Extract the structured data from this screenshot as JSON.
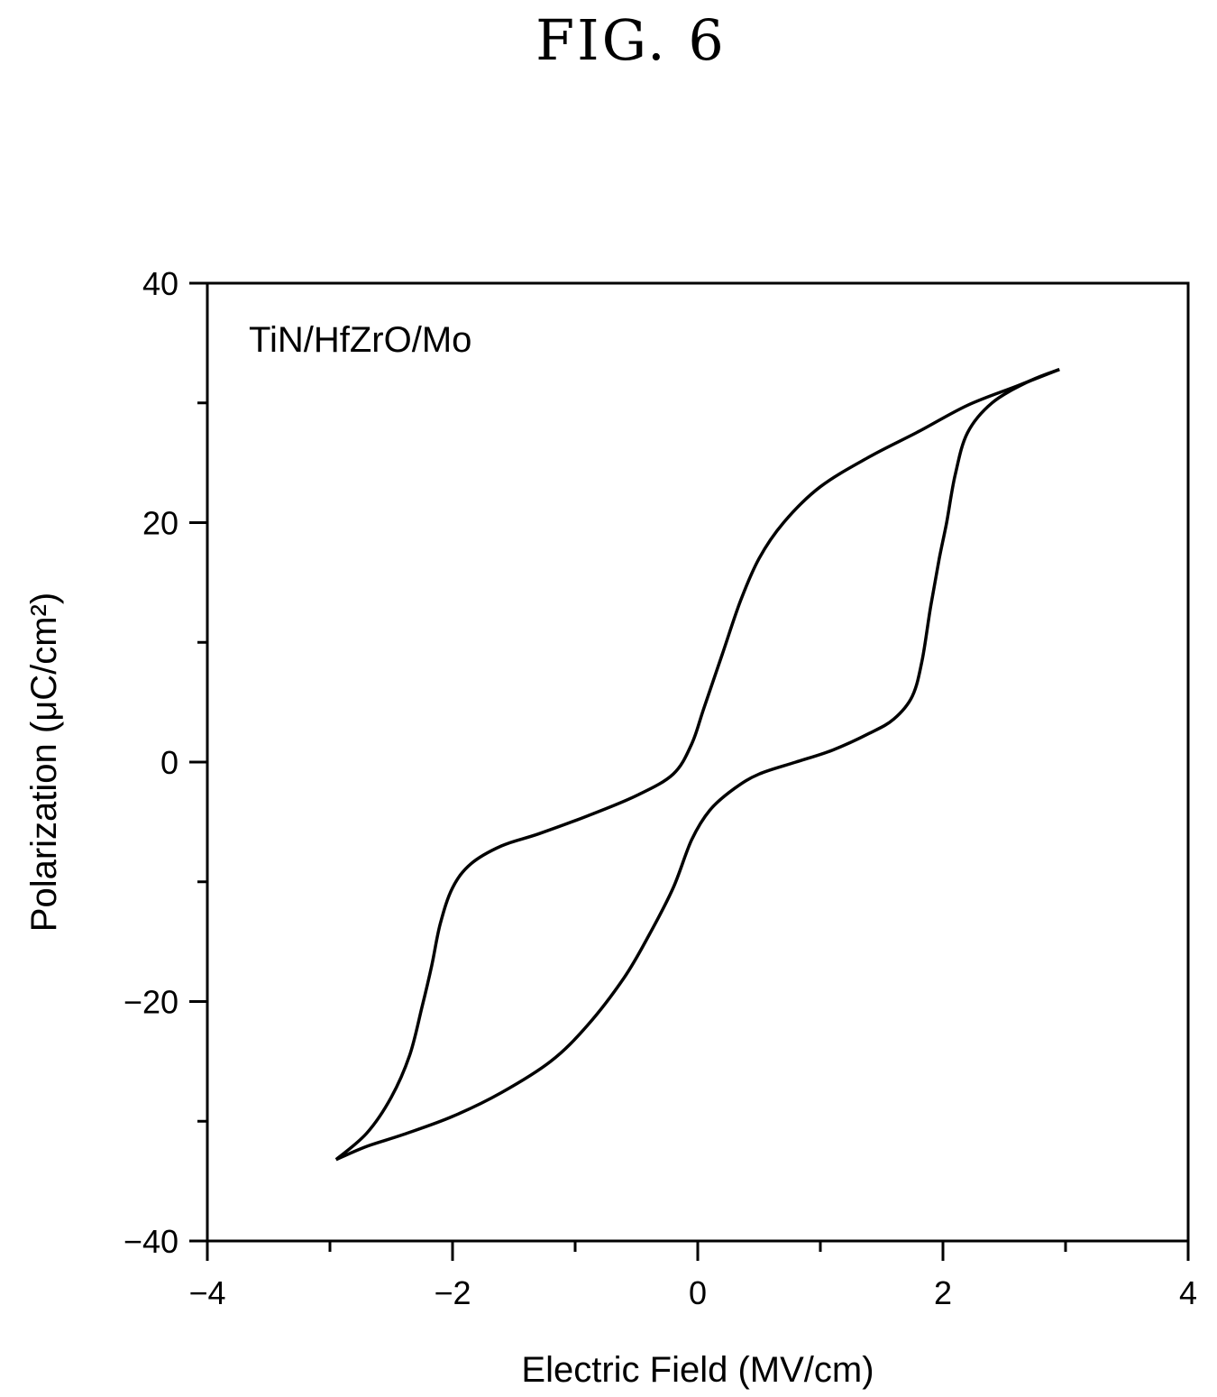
{
  "figure_label": "FIG. 6",
  "chart_data": {
    "type": "line",
    "title": "",
    "xlabel": "Electric Field (MV/cm)",
    "ylabel": "Polarization (μC/cm²)",
    "xlim": [
      -4,
      4
    ],
    "ylim": [
      -40,
      40
    ],
    "x_ticks": [
      -4,
      -2,
      0,
      2,
      4
    ],
    "x_tick_labels": [
      "−4",
      "−2",
      "0",
      "2",
      "4"
    ],
    "y_ticks": [
      -40,
      -20,
      0,
      20,
      40
    ],
    "y_tick_labels": [
      "−40",
      "−20",
      "0",
      "20",
      "40"
    ],
    "grid": false,
    "annotation": "TiN/HfZrO/Mo",
    "series": [
      {
        "points": [
          [
            -2.95,
            -33.2
          ],
          [
            -2.7,
            -32.1
          ],
          [
            -2.4,
            -31.1
          ],
          [
            -2.0,
            -29.6
          ],
          [
            -1.6,
            -27.6
          ],
          [
            -1.2,
            -25.0
          ],
          [
            -0.9,
            -22.0
          ],
          [
            -0.6,
            -18.0
          ],
          [
            -0.4,
            -14.5
          ],
          [
            -0.2,
            -10.5
          ],
          [
            -0.05,
            -6.5
          ],
          [
            0.1,
            -4.0
          ],
          [
            0.3,
            -2.2
          ],
          [
            0.5,
            -1.0
          ],
          [
            0.8,
            0.0
          ],
          [
            1.1,
            1.0
          ],
          [
            1.4,
            2.4
          ],
          [
            1.6,
            3.6
          ],
          [
            1.75,
            5.5
          ],
          [
            1.83,
            8.5
          ],
          [
            1.9,
            13.0
          ],
          [
            1.97,
            17.0
          ],
          [
            2.03,
            20.0
          ],
          [
            2.1,
            24.0
          ],
          [
            2.2,
            27.5
          ],
          [
            2.4,
            30.0
          ],
          [
            2.7,
            31.8
          ],
          [
            2.95,
            32.8
          ]
        ]
      },
      {
        "points": [
          [
            2.95,
            32.8
          ],
          [
            2.6,
            31.4
          ],
          [
            2.2,
            29.8
          ],
          [
            1.8,
            27.6
          ],
          [
            1.4,
            25.5
          ],
          [
            1.0,
            23.0
          ],
          [
            0.7,
            20.0
          ],
          [
            0.5,
            17.0
          ],
          [
            0.35,
            13.5
          ],
          [
            0.2,
            9.0
          ],
          [
            0.05,
            4.5
          ],
          [
            -0.05,
            1.5
          ],
          [
            -0.2,
            -1.0
          ],
          [
            -0.5,
            -2.8
          ],
          [
            -0.9,
            -4.5
          ],
          [
            -1.3,
            -6.0
          ],
          [
            -1.6,
            -7.0
          ],
          [
            -1.85,
            -8.5
          ],
          [
            -2.0,
            -10.5
          ],
          [
            -2.1,
            -13.5
          ],
          [
            -2.17,
            -17.0
          ],
          [
            -2.25,
            -20.5
          ],
          [
            -2.35,
            -24.5
          ],
          [
            -2.5,
            -28.0
          ],
          [
            -2.7,
            -31.0
          ],
          [
            -2.95,
            -33.2
          ]
        ]
      }
    ]
  }
}
